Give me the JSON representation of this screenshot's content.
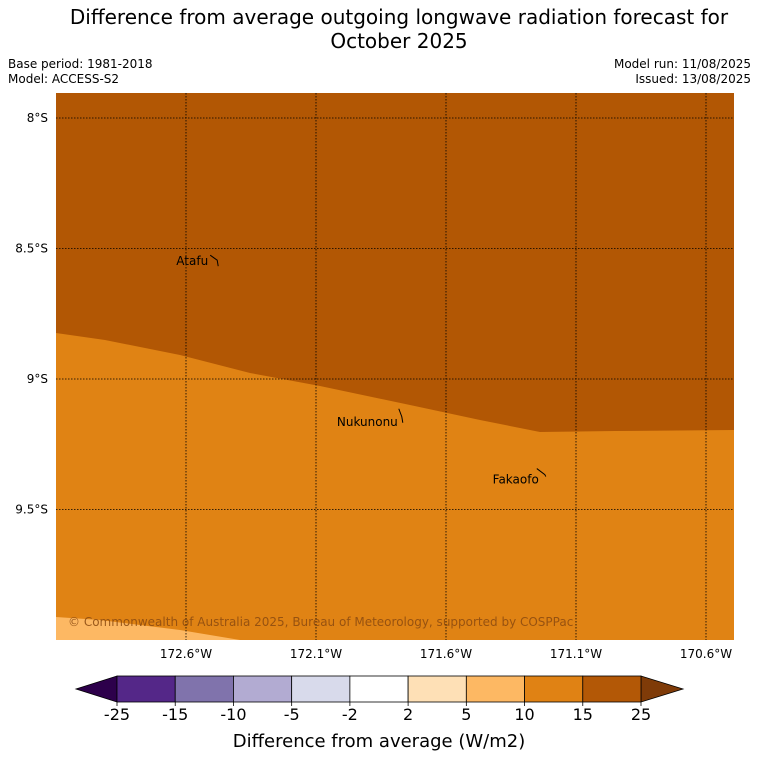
{
  "header": {
    "title_line1": "Difference from average outgoing longwave radiation forecast for",
    "title_line2": "October 2025",
    "base_period": "Base period: 1981-2018",
    "model": "Model: ACCESS-S2",
    "model_run": "Model run: 11/08/2025",
    "issued": "Issued: 13/08/2025"
  },
  "map": {
    "lat_labels": [
      {
        "text": "8°S",
        "value": -8.0
      },
      {
        "text": "8.5°S",
        "value": -8.5
      },
      {
        "text": "9°S",
        "value": -9.0
      },
      {
        "text": "9.5°S",
        "value": -9.5
      }
    ],
    "lon_labels": [
      {
        "text": "172.6°W",
        "value": -172.6
      },
      {
        "text": "172.1°W",
        "value": -172.1
      },
      {
        "text": "171.6°W",
        "value": -171.6
      },
      {
        "text": "171.1°W",
        "value": -171.1
      },
      {
        "text": "170.6°W",
        "value": -170.6
      }
    ],
    "places": [
      {
        "name": "Atafu",
        "lon": -172.48,
        "lat": -8.56
      },
      {
        "name": "Nukunonu",
        "lon": -171.77,
        "lat": -9.16
      },
      {
        "name": "Fakaofo",
        "lon": -171.22,
        "lat": -9.37
      }
    ],
    "region_colors": {
      "upper": "#b25704",
      "middle": "#e08314",
      "lower": "#fdb863"
    },
    "copyright": "© Commonwealth of Australia 2025, Bureau of Meteorology, supported by COSPPac"
  },
  "colorbar": {
    "title": "Difference from average (W/m2)",
    "ticks": [
      "-25",
      "-15",
      "-10",
      "-5",
      "-2",
      "2",
      "5",
      "10",
      "15",
      "25"
    ],
    "colors": [
      "#542788",
      "#8073ac",
      "#b2abd2",
      "#d8daeb",
      "#ffffff",
      "#fee0b6",
      "#fdb863",
      "#e08214",
      "#b35806"
    ],
    "under_color": "#2d004b",
    "over_color": "#7f3b08"
  }
}
